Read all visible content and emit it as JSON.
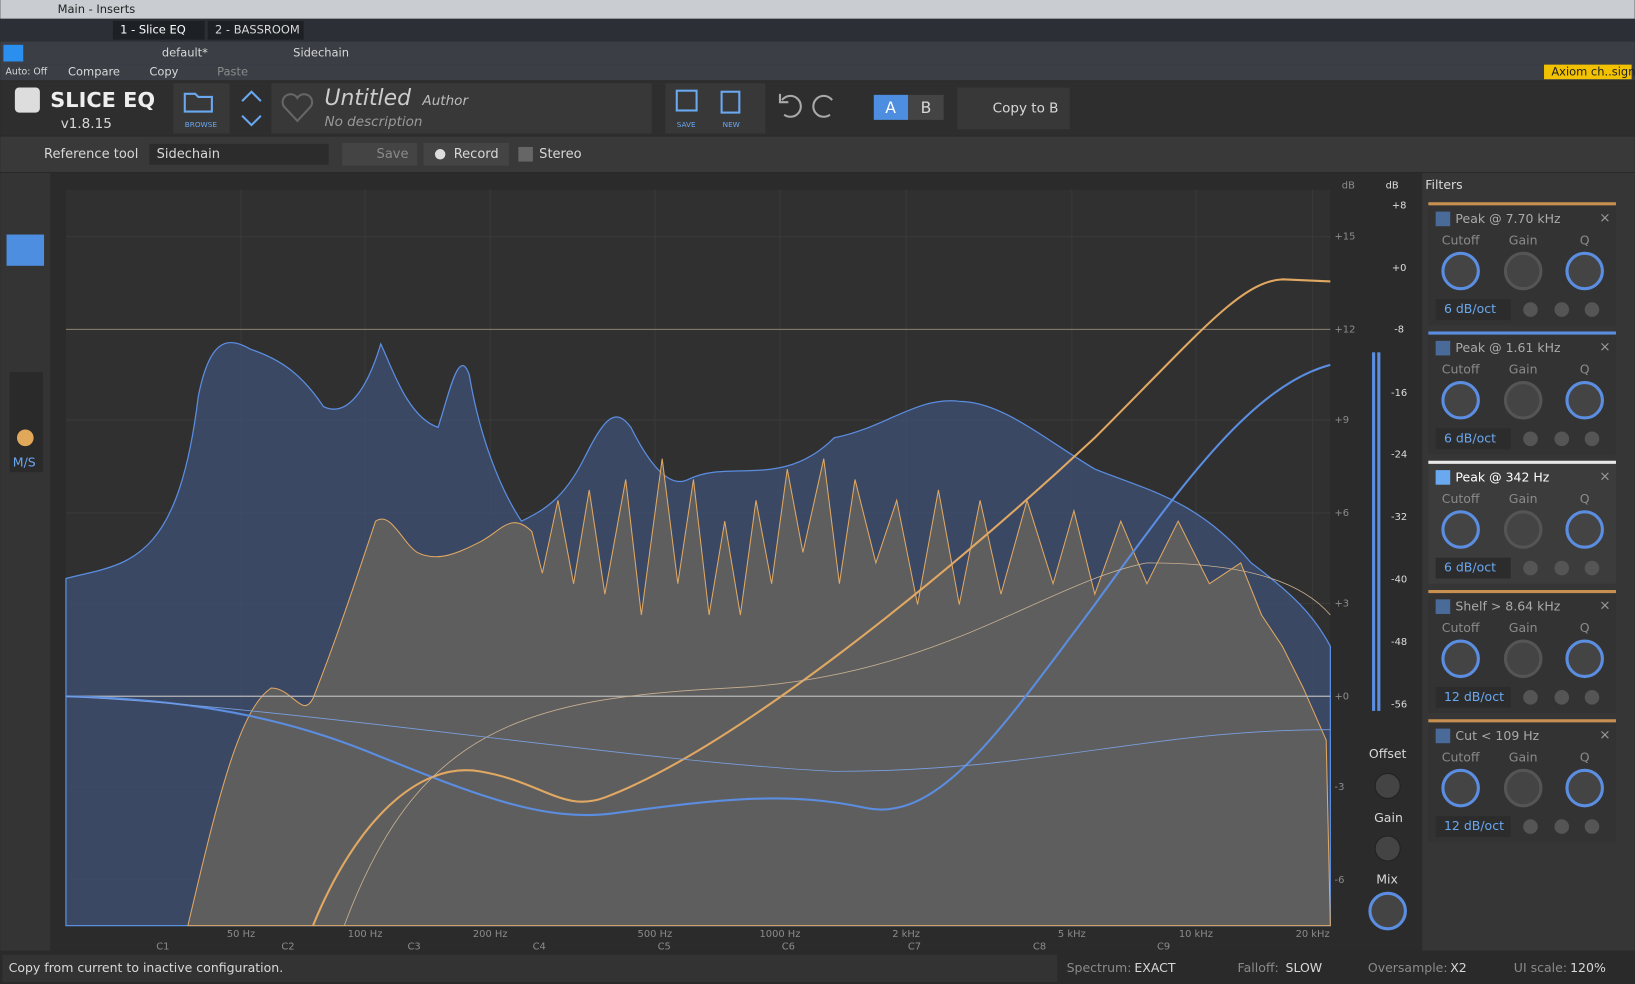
{
  "window": {
    "title": "Main - Inserts",
    "tabs": [
      "1 - Slice EQ",
      "2 - BASSROOM"
    ],
    "preset": "default*",
    "sidechain": "Sidechain",
    "auto": "Auto: Off",
    "compare": "Compare",
    "copy": "Copy",
    "paste": "Paste",
    "device": "Axiom ch..sign"
  },
  "header": {
    "product": "SLICE EQ",
    "version": "v1.8.15",
    "browse": "BROWSE",
    "preset_name": "Untitled",
    "author": "Author",
    "description": "No description",
    "save": "SAVE",
    "new": "NEW",
    "a": "A",
    "b": "B",
    "copy_to_b": "Copy to B"
  },
  "reference": {
    "label": "Reference tool",
    "source": "Sidechain",
    "save": "Save",
    "record": "Record",
    "stereo": "Stereo"
  },
  "sidebar": {
    "ms": "M/S"
  },
  "display": {
    "db_unit": "dB",
    "gain_ticks": [
      "+15",
      "+12",
      "+9",
      "+6",
      "+3",
      "+0",
      "-3",
      "-6"
    ],
    "meter_unit": "dB",
    "meter_ticks": [
      "+8",
      "+0",
      "-8",
      "-16",
      "-24",
      "-32",
      "-40",
      "-48",
      "-56"
    ],
    "freq_ticks": [
      "50 Hz",
      "100 Hz",
      "200 Hz",
      "500 Hz",
      "1000 Hz",
      "2 kHz",
      "5 kHz",
      "10 kHz",
      "20 kHz"
    ],
    "notes": [
      "C1",
      "C2",
      "C3",
      "C4",
      "C5",
      "C6",
      "C7",
      "C8",
      "C9"
    ]
  },
  "output": {
    "offset": "Offset",
    "gain": "Gain",
    "mix": "Mix"
  },
  "filters": {
    "title": "Filters",
    "knob_labels": [
      "Cutoff",
      "Gain",
      "Q"
    ],
    "items": [
      {
        "type": "Peak",
        "sep": "@",
        "freq": "7.70 kHz",
        "slope": "6 dB/oct"
      },
      {
        "type": "Peak",
        "sep": "@",
        "freq": "1.61 kHz",
        "slope": "6 dB/oct"
      },
      {
        "type": "Peak",
        "sep": "@",
        "freq": "342 Hz",
        "slope": "6 dB/oct"
      },
      {
        "type": "Shelf",
        "sep": ">",
        "freq": "8.64 kHz",
        "slope": "12 dB/oct"
      },
      {
        "type": "Cut",
        "sep": "<",
        "freq": "109 Hz",
        "slope": "12 dB/oct"
      }
    ]
  },
  "status": {
    "message": "Copy from current to inactive configuration.",
    "spectrum_label": "Spectrum:",
    "spectrum": "EXACT",
    "falloff_label": "Falloff:",
    "falloff": "SLOW",
    "oversample_label": "Oversample:",
    "oversample": "X2",
    "ui_scale_label": "UI scale:",
    "ui_scale": "120%"
  }
}
